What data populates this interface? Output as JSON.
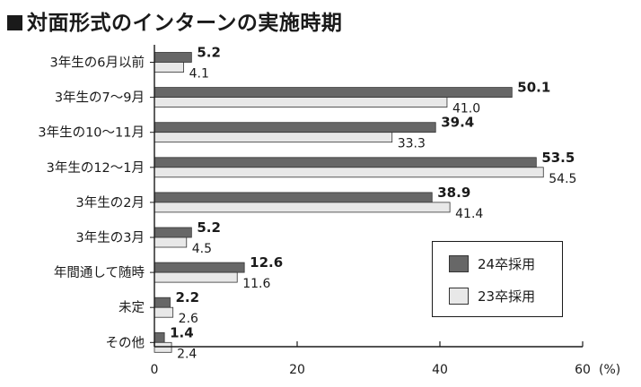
{
  "title": "対面形式のインターンの実施時期",
  "colors": {
    "series24": "#676767",
    "series23": "#e8e8e8",
    "axis": "#1a1a1a"
  },
  "chart_data": {
    "type": "bar",
    "orientation": "horizontal",
    "categories": [
      "3年生の6月以前",
      "3年生の7〜9月",
      "3年生の10〜11月",
      "3年生の12〜1月",
      "3年生の2月",
      "3年生の3月",
      "年間通して随時",
      "未定",
      "その他"
    ],
    "series": [
      {
        "name": "24卒採用",
        "values": [
          5.2,
          50.1,
          39.4,
          53.5,
          38.9,
          5.2,
          12.6,
          2.2,
          1.4
        ]
      },
      {
        "name": "23卒採用",
        "values": [
          4.1,
          41.0,
          33.3,
          54.5,
          41.4,
          4.5,
          11.6,
          2.6,
          2.4
        ]
      }
    ],
    "value_labels": [
      [
        "5.2",
        "50.1",
        "39.4",
        "53.5",
        "38.9",
        "5.2",
        "12.6",
        "2.2",
        "1.4"
      ],
      [
        "4.1",
        "41.0",
        "33.3",
        "54.5",
        "41.4",
        "4.5",
        "11.6",
        "2.6",
        "2.4"
      ]
    ],
    "xlim": [
      0,
      60
    ],
    "xticks": [
      "0",
      "20",
      "40",
      "60"
    ],
    "xunit": "(%)",
    "grid": false,
    "legend_position": "bottom-right"
  }
}
